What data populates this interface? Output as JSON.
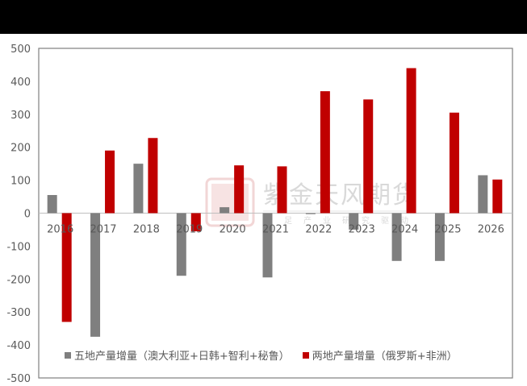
{
  "chart_data": {
    "type": "bar",
    "title": "",
    "xlabel": "",
    "ylabel": "",
    "ylim": [
      -500,
      500
    ],
    "yticks": [
      500,
      400,
      300,
      200,
      100,
      0,
      -100,
      -200,
      -300,
      -400,
      -500
    ],
    "grid": false,
    "legend_position": "bottom-inside",
    "categories": [
      "2016",
      "2017",
      "2018",
      "2019",
      "2020",
      "2021",
      "2022",
      "2023",
      "2024",
      "2025",
      "2026"
    ],
    "series": [
      {
        "name": "五地产量增量（澳大利亚+日韩+智利+秘鲁）",
        "color": "#7f7f7f",
        "values": [
          55,
          -375,
          150,
          -190,
          18,
          -195,
          -3,
          -50,
          -145,
          -145,
          115
        ]
      },
      {
        "name": "两地产量增量（俄罗斯+非洲）",
        "color": "#c00000",
        "values": [
          -330,
          190,
          228,
          -55,
          145,
          142,
          370,
          345,
          440,
          305,
          102
        ]
      }
    ]
  },
  "watermark": {
    "text": "紫金天风期货",
    "subtitle": "立足产业研究驱动"
  },
  "legend": {
    "series0": "五地产量增量（澳大利亚+日韩+智利+秘鲁）",
    "series1": "两地产量增量（俄罗斯+非洲）"
  }
}
